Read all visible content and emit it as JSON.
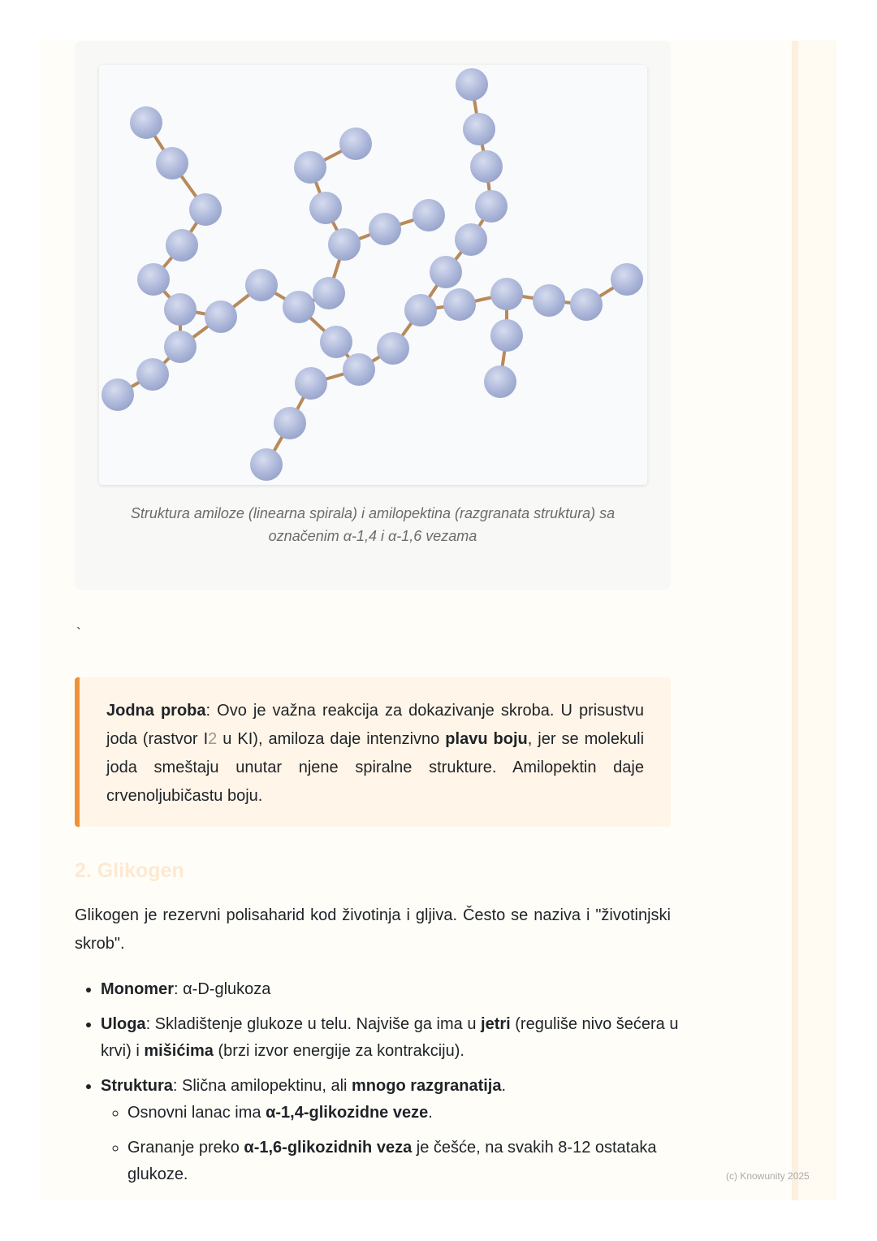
{
  "figure": {
    "caption_line1": "Struktura amiloze (linearna spirala) i amilopektina (razgranata struktura) sa",
    "caption_line2": "označenim α-1,4 i α-1,6 vezama",
    "node_color": "#b4bedd",
    "bond_color": "#b8895a"
  },
  "stray_mark": "`",
  "callout": {
    "term": "Jodna proba",
    "text1": ": Ovo je važna reakcija za dokazivanje skroba. U prisustvu joda (rastvor I",
    "sub": "2",
    "text2": " u KI), amiloza daje intenzivno ",
    "bold": "plavu boju",
    "text3": ", jer se molekuli joda smeštaju unutar njene spiralne strukture. Amilopektin daje crvenoljubičastu boju.",
    "accent": "#f0913a"
  },
  "section": {
    "heading": "2. Glikogen",
    "intro": "Glikogen je rezervni polisaharid kod životinja i gljiva. Često se naziva i \"životinjski skrob\"."
  },
  "list": {
    "monomer": {
      "term": "Monomer",
      "text": ": α-D-glukoza"
    },
    "role": {
      "term": "Uloga",
      "t1": ": Skladištenje glukoze u telu. Najviše ga ima u ",
      "b1": "jetri",
      "t2": " (reguliše nivo šećera u krvi) i ",
      "b2": "mišićima",
      "t3": " (brzi izvor energije za kontrakciju)."
    },
    "structure": {
      "term": "Struktura",
      "t1": ": Slična amilopektinu, ali ",
      "b1": "mnogo razgranatija",
      "t2": ".",
      "sub1": {
        "t1": "Osnovni lanac ima ",
        "b1": "α-1,4-glikozidne veze",
        "t2": "."
      },
      "sub2": {
        "t1": "Grananje preko ",
        "b1": "α-1,6-glikozidnih veza",
        "t2": " je češće, na svakih 8-12 ostataka glukoze."
      }
    }
  },
  "footer": "(c) Knowunity 2025"
}
